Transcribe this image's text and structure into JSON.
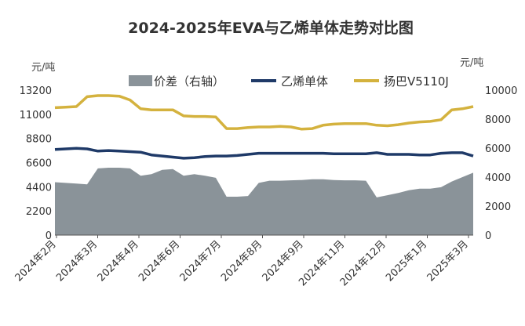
{
  "chart_data": {
    "type": "line",
    "title": "2024-2025年EVA与乙烯单体走势对比图",
    "y_left_unit": "元/吨",
    "y_right_unit": "元/吨",
    "y_left_ticks": [
      "0",
      "2200",
      "4400",
      "6600",
      "8800",
      "11000",
      "13200"
    ],
    "y_right_ticks": [
      "0",
      "2000",
      "4000",
      "6000",
      "8000",
      "10000"
    ],
    "y_left_lim": [
      0,
      13200
    ],
    "y_right_lim": [
      0,
      10000
    ],
    "x_tick_labels": [
      "2024年2月",
      "2024年3月",
      "2024年4月",
      "2024年6月",
      "2024年7月",
      "2024年8月",
      "2024年9月",
      "2024年11月",
      "2024年12月",
      "2025年1月",
      "2025年3月"
    ],
    "legend_position": "top",
    "colors": {
      "spread": "#8a9399",
      "ethylene": "#1f3a68",
      "yangba": "#d4b23e",
      "axis": "#555555",
      "grid": "#d9d9d9"
    },
    "series": [
      {
        "name": "价差（右轴）",
        "kind": "area",
        "axis": "right",
        "color": "#8a9399",
        "values": [
          3650,
          3600,
          3550,
          3500,
          4600,
          4650,
          4650,
          4600,
          4100,
          4200,
          4500,
          4550,
          4100,
          4200,
          4100,
          3950,
          2650,
          2650,
          2700,
          3600,
          3750,
          3750,
          3780,
          3800,
          3850,
          3850,
          3800,
          3780,
          3780,
          3750,
          2600,
          2750,
          2900,
          3100,
          3200,
          3200,
          3300,
          3700,
          4000,
          4300
        ]
      },
      {
        "name": "乙烯单体",
        "kind": "line",
        "axis": "left",
        "color": "#1f3a68",
        "values": [
          7800,
          7850,
          7900,
          7850,
          7650,
          7700,
          7650,
          7600,
          7550,
          7300,
          7200,
          7100,
          7000,
          7050,
          7150,
          7200,
          7200,
          7250,
          7350,
          7450,
          7450,
          7450,
          7450,
          7450,
          7450,
          7450,
          7400,
          7400,
          7400,
          7400,
          7500,
          7350,
          7350,
          7350,
          7300,
          7300,
          7450,
          7500,
          7500,
          7200
        ]
      },
      {
        "name": "扬巴V5110J",
        "kind": "line",
        "axis": "left",
        "color": "#d4b23e",
        "values": [
          11600,
          11650,
          11700,
          12600,
          12700,
          12700,
          12650,
          12300,
          11500,
          11400,
          11400,
          11400,
          10850,
          10800,
          10800,
          10750,
          9700,
          9700,
          9800,
          9850,
          9850,
          9900,
          9850,
          9650,
          9700,
          10000,
          10100,
          10150,
          10150,
          10150,
          10000,
          9950,
          10050,
          10200,
          10300,
          10350,
          10500,
          11400,
          11500,
          11700
        ]
      }
    ]
  }
}
